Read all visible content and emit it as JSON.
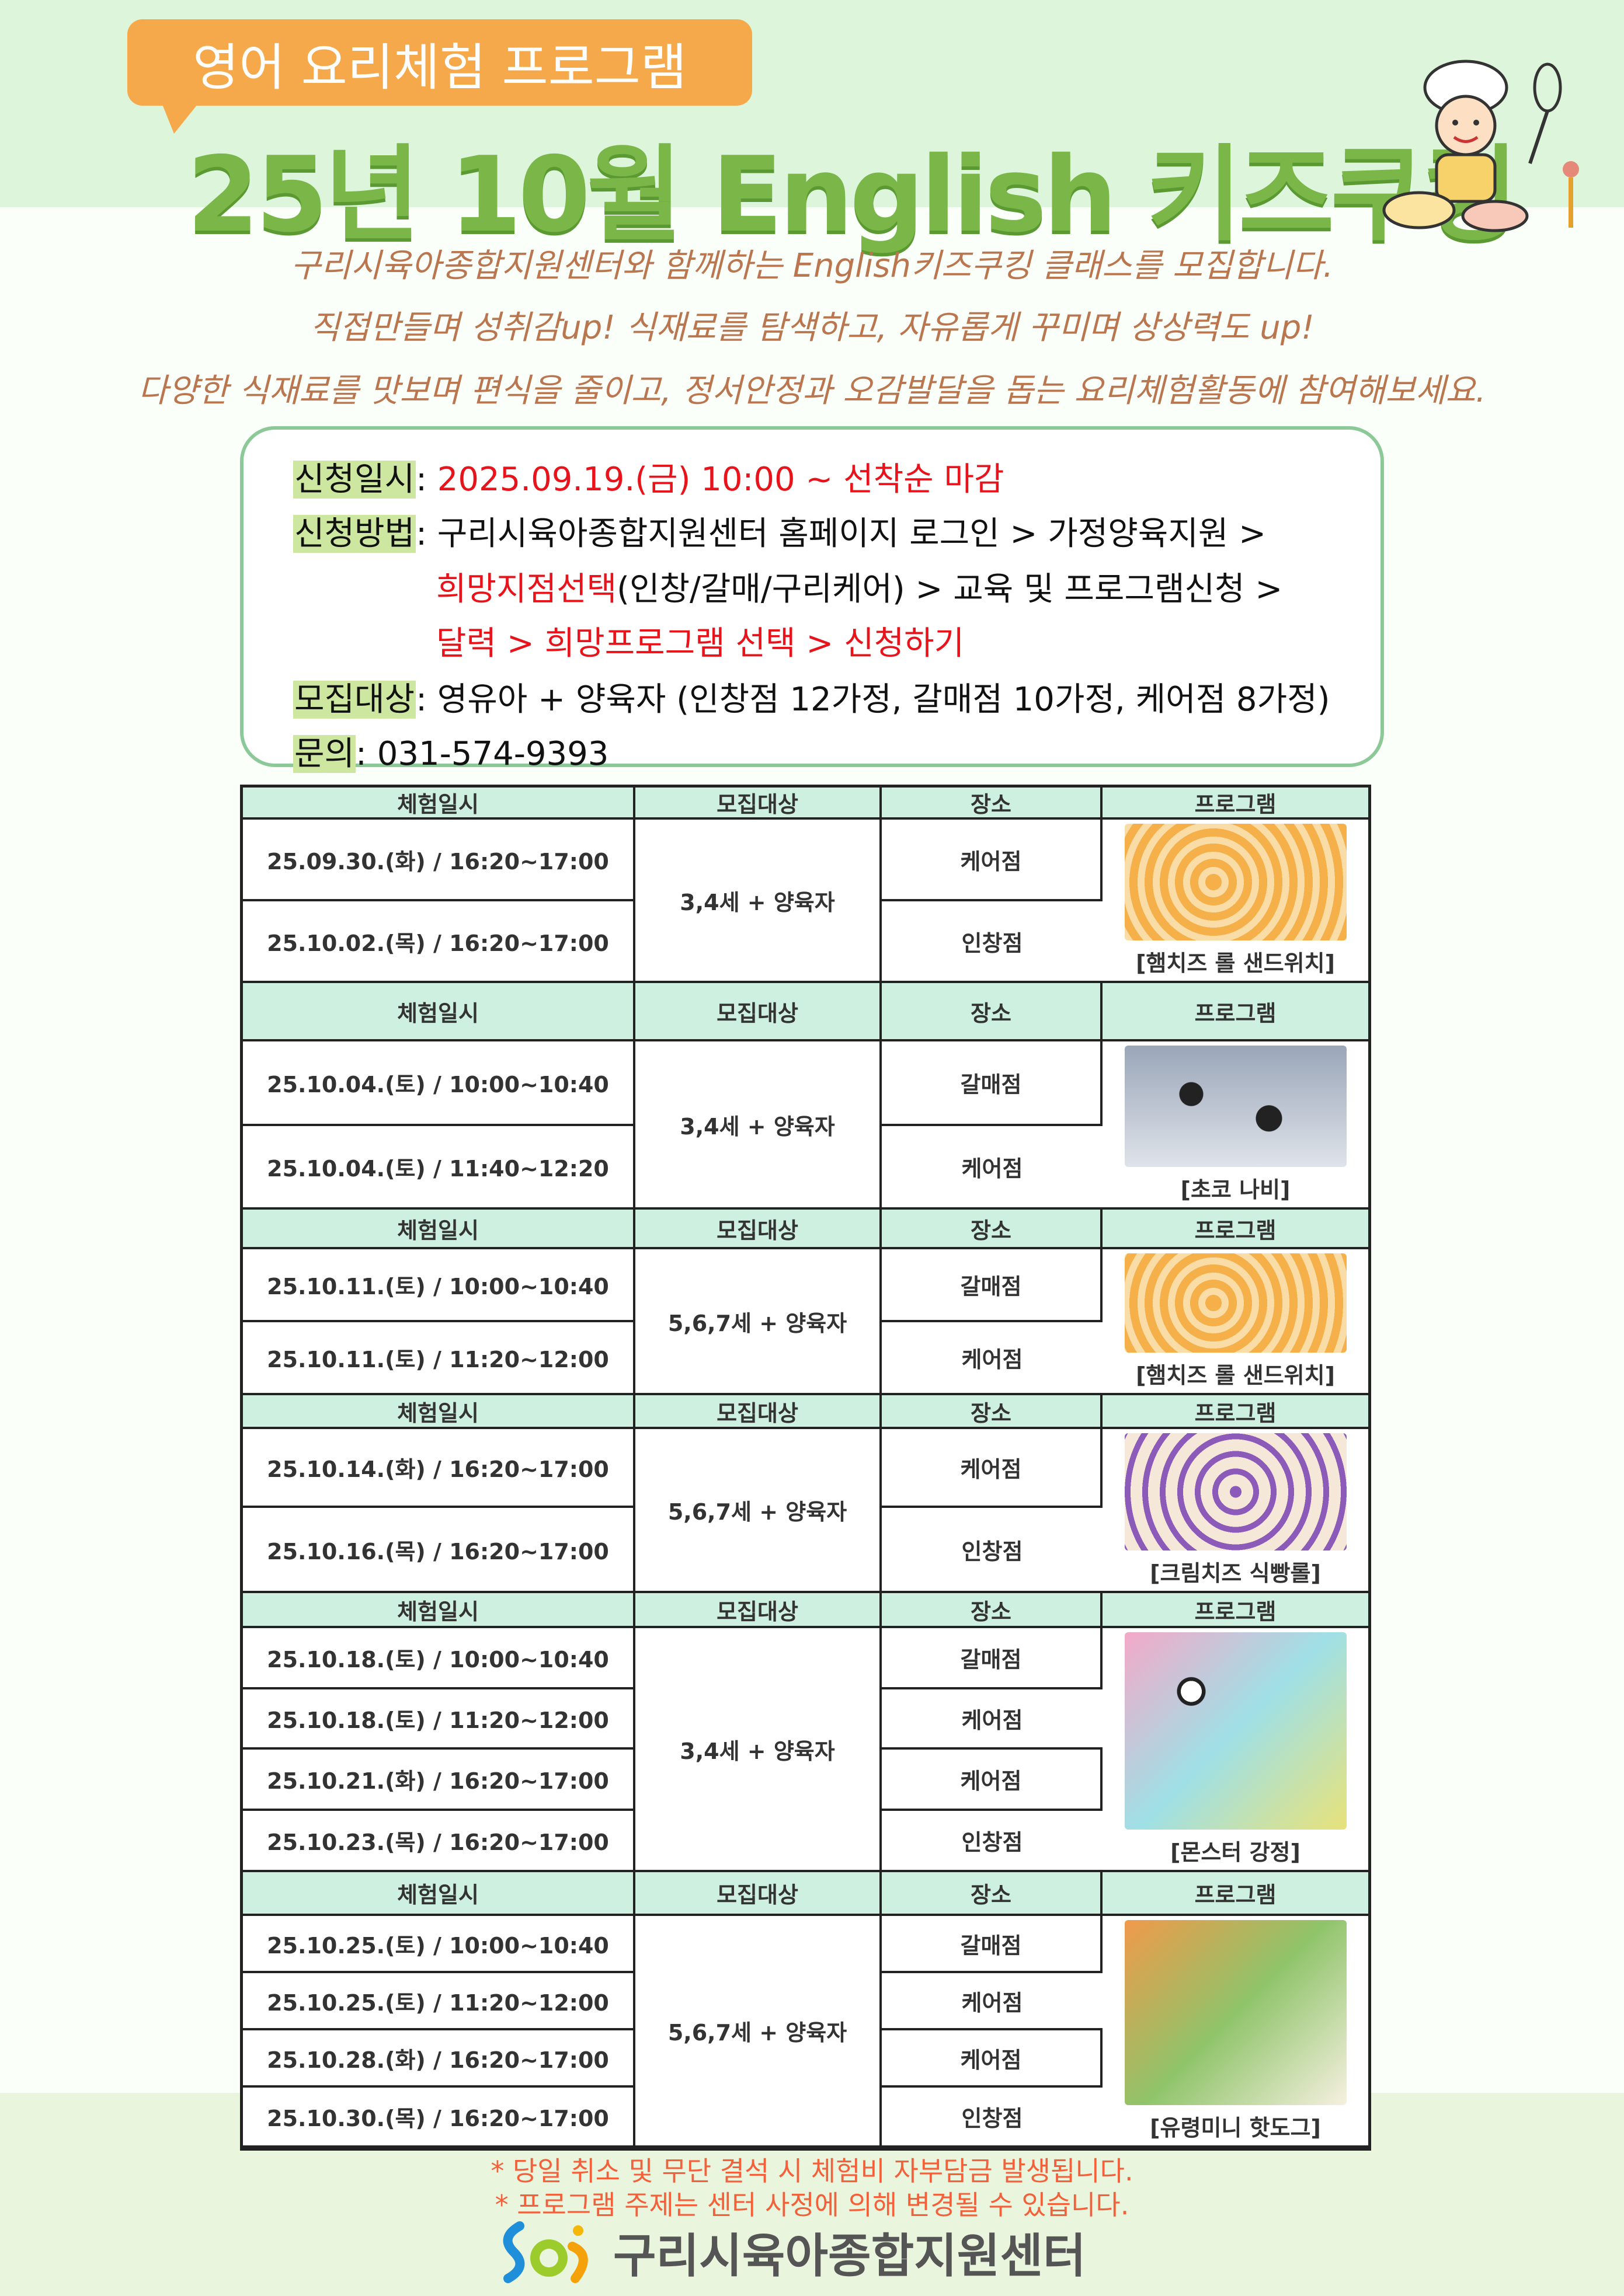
{
  "header": {
    "badge": "영어 요리체험 프로그램",
    "title": "25년 10월 English 키즈쿠킹"
  },
  "intro": [
    "구리시육아종합지원센터와 함께하는 English키즈쿠킹 클래스를 모집합니다.",
    "직접만들며 성취감up! 식재료를 탐색하고, 자유롭게 꾸미며 상상력도 up!",
    "다양한 식재료를 맛보며 편식을 줄이고, 정서안정과 오감발달을 돕는 요리체험활동에 참여해보세요."
  ],
  "info": [
    {
      "label": "신청일시",
      "segments": [
        {
          "t": ": ",
          "red": false
        },
        {
          "t": "2025.09.19.(금) 10:00 ~ 선착순 마감",
          "red": true
        }
      ]
    },
    {
      "label": "신청방법",
      "segments": [
        {
          "t": ": 구리시육아종합지원센터 홈페이지 로그인 > 가정양육지원 >",
          "red": false
        }
      ]
    },
    {
      "label": "",
      "segments": [
        {
          "t": "희망지점선택",
          "red": true
        },
        {
          "t": "(인창/갈매/구리케어) > 교육 및 프로그램신청 >",
          "red": false
        }
      ]
    },
    {
      "label": "",
      "segments": [
        {
          "t": "달력 > 희망프로그램 선택 > 신청하기",
          "red": true
        }
      ]
    },
    {
      "label": "모집대상",
      "segments": [
        {
          "t": ": 영유아 + 양육자  (인창점 12가정, 갈매점 10가정, 케어점 8가정)",
          "red": false
        }
      ]
    },
    {
      "label": "문의",
      "segments": [
        {
          "t": ": 031-574-9393",
          "red": false
        }
      ]
    }
  ],
  "table": {
    "headers": [
      "체험일시",
      "모집대상",
      "장소",
      "프로그램"
    ],
    "sections": [
      {
        "target": "3,4세 + 양육자",
        "program": "[햄치즈 롤 샌드위치]",
        "photo": "roll",
        "rows": [
          [
            "25.09.30.(화) / 16:20~17:00",
            "케어점"
          ],
          [
            "25.10.02.(목) / 16:20~17:00",
            "인창점"
          ]
        ]
      },
      {
        "target": "3,4세 + 양육자",
        "program": "[초코 나비]",
        "photo": "choco",
        "rows": [
          [
            "25.10.04.(토) / 10:00~10:40",
            "갈매점"
          ],
          [
            "25.10.04.(토) / 11:40~12:20",
            "케어점"
          ]
        ]
      },
      {
        "target": "5,6,7세 + 양육자",
        "program": "[햄치즈 롤 샌드위치]",
        "photo": "roll",
        "rows": [
          [
            "25.10.11.(토) / 10:00~10:40",
            "갈매점"
          ],
          [
            "25.10.11.(토) / 11:20~12:00",
            "케어점"
          ]
        ]
      },
      {
        "target": "5,6,7세 + 양육자",
        "program": "[크림치즈 식빵롤]",
        "photo": "cream",
        "rows": [
          [
            "25.10.14.(화) / 16:20~17:00",
            "케어점"
          ],
          [
            "25.10.16.(목) / 16:20~17:00",
            "인창점"
          ]
        ]
      },
      {
        "target": "3,4세 + 양육자",
        "program": "[몬스터 강정]",
        "photo": "monster",
        "rows": [
          [
            "25.10.18.(토) / 10:00~10:40",
            "갈매점"
          ],
          [
            "25.10.18.(토) / 11:20~12:00",
            "케어점"
          ],
          [
            "25.10.21.(화) / 16:20~17:00",
            "케어점"
          ],
          [
            "25.10.23.(목) / 16:20~17:00",
            "인창점"
          ]
        ]
      },
      {
        "target": "5,6,7세 + 양육자",
        "program": "[유령미니 핫도그]",
        "photo": "hotdog",
        "rows": [
          [
            "25.10.25.(토) / 10:00~10:40",
            "갈매점"
          ],
          [
            "25.10.25.(토) / 11:20~12:00",
            "케어점"
          ],
          [
            "25.10.28.(화) / 16:20~17:00",
            "케어점"
          ],
          [
            "25.10.30.(목) / 16:20~17:00",
            "인창점"
          ]
        ]
      }
    ]
  },
  "footer": {
    "notes": [
      "* 당일 취소 및 무단 결석 시 체험비 자부담금 발생됩니다.",
      "* 프로그램 주제는 센터 사정에 의해 변경될 수 있습니다."
    ],
    "org": "구리시육아종합지원센터"
  },
  "colors": {
    "title": "#7ab648",
    "badge": "#f6a94a",
    "intro": "#b9764f",
    "highlight": "#cde6a0",
    "red": "#e8141c",
    "header_bg": "#cdf0e0",
    "note": "#f4603a"
  }
}
